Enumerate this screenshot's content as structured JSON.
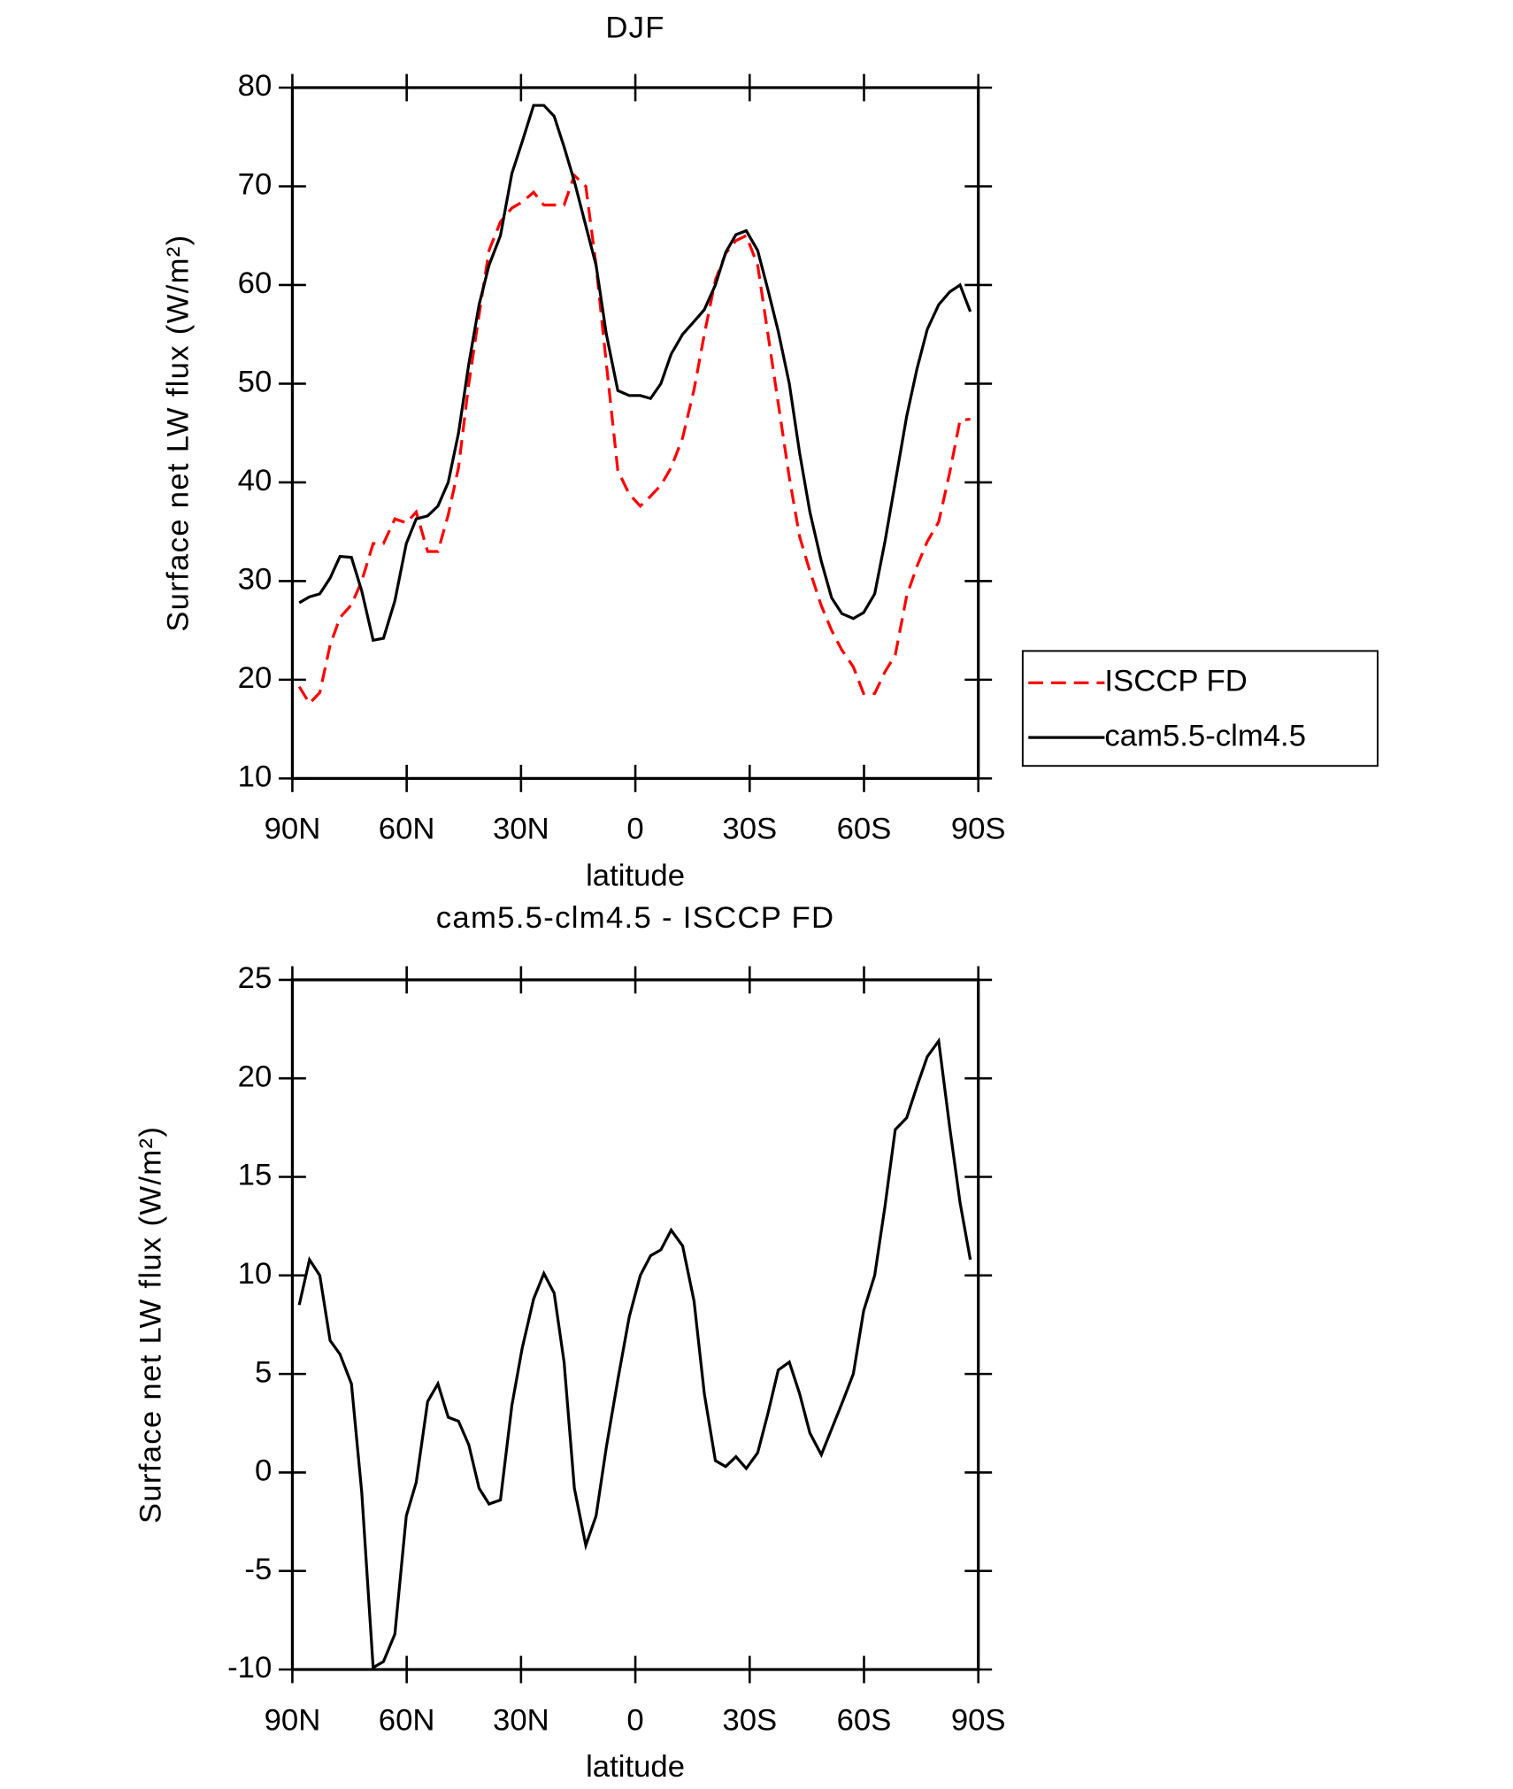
{
  "chart_data": [
    {
      "type": "line",
      "title": "DJF",
      "xlabel": "latitude",
      "ylabel": "Surface net LW flux (W/m²)",
      "x": [
        88.2,
        85.5,
        82.8,
        80.1,
        77.5,
        74.5,
        71.8,
        68.8,
        66.1,
        63.1,
        60.1,
        57.5,
        54.5,
        51.8,
        49.1,
        46.4,
        43.7,
        41,
        38.4,
        35.4,
        32.4,
        29.7,
        26.7,
        24,
        21.3,
        18.7,
        16,
        13,
        10.3,
        7.6,
        4.6,
        1.6,
        -1.3,
        -4,
        -6.7,
        -9.4,
        -12.4,
        -15.4,
        -18.1,
        -21,
        -23.7,
        -26.4,
        -29.1,
        -32.1,
        -34.8,
        -37.5,
        -40.4,
        -43.1,
        -45.8,
        -48.8,
        -51.5,
        -54.2,
        -57.2,
        -59.9,
        -62.8,
        -65.5,
        -68.2,
        -71.2,
        -73.9,
        -76.6,
        -79.6,
        -82.5,
        -85.2,
        -87.9
      ],
      "series": [
        {
          "name": "ISCCP FD",
          "color": "#ff0000",
          "style": "dashed",
          "values": [
            19.3,
            17.6,
            18.7,
            23.5,
            26.3,
            27.6,
            30,
            33.8,
            33.8,
            36.3,
            35.9,
            37,
            33,
            33,
            36.7,
            41.5,
            50,
            57,
            63.5,
            66.4,
            67.8,
            68.4,
            69.4,
            68.1,
            68.1,
            68.1,
            71.1,
            70,
            62,
            52,
            41.2,
            38.8,
            37.6,
            38.6,
            39.7,
            41.5,
            44.5,
            49.4,
            55,
            60.5,
            63.2,
            64.5,
            65,
            62,
            55,
            48,
            40.5,
            34.5,
            31,
            27.5,
            25,
            23,
            21.3,
            18.6,
            18.6,
            20.8,
            22.5,
            28.5,
            31.5,
            34,
            36,
            41,
            46.3,
            46.4
          ]
        },
        {
          "name": "cam5.5-clm4.5",
          "color": "#000000",
          "style": "solid",
          "values": [
            27.8,
            28.4,
            28.7,
            30.3,
            32.5,
            32.4,
            29,
            24,
            24.2,
            28,
            33.8,
            36.3,
            36.6,
            37.6,
            40,
            45,
            52,
            58,
            62,
            65,
            71.3,
            74.5,
            78.2,
            78.2,
            77.1,
            74,
            70.5,
            66,
            62,
            55,
            49.3,
            48.8,
            48.8,
            48.5,
            50,
            53,
            55,
            56.3,
            57.5,
            60,
            63.3,
            65.1,
            65.5,
            63.5,
            59.5,
            55.3,
            50,
            43,
            37,
            32,
            28.3,
            26.7,
            26.2,
            26.8,
            28.7,
            34,
            40,
            46.7,
            51.5,
            55.5,
            58,
            59.3,
            60,
            57.3
          ]
        }
      ],
      "xlim": [
        90,
        -90
      ],
      "xticks": [
        {
          "value": 90,
          "label": "90N"
        },
        {
          "value": 60,
          "label": "60N"
        },
        {
          "value": 30,
          "label": "30N"
        },
        0,
        {
          "value": -30,
          "label": "30S"
        },
        {
          "value": -60,
          "label": "60S"
        },
        {
          "value": -90,
          "label": "90S"
        }
      ],
      "ylim": [
        10,
        80
      ],
      "yticks": [
        10,
        20,
        30,
        40,
        50,
        60,
        70,
        80
      ],
      "legend": "right"
    },
    {
      "type": "line",
      "title": "cam5.5-clm4.5 - ISCCP FD",
      "xlabel": "latitude",
      "ylabel": "Surface net LW flux (W/m²)",
      "x": [
        88.2,
        85.5,
        82.8,
        80.1,
        77.5,
        74.5,
        71.8,
        68.8,
        66.1,
        63.1,
        60.1,
        57.5,
        54.5,
        51.8,
        49.1,
        46.4,
        43.7,
        41,
        38.4,
        35.4,
        32.4,
        29.7,
        26.7,
        24,
        21.3,
        18.7,
        16,
        13,
        10.3,
        7.6,
        4.6,
        1.6,
        -1.3,
        -4,
        -6.7,
        -9.4,
        -12.4,
        -15.4,
        -18.1,
        -21,
        -23.7,
        -26.4,
        -29.1,
        -32.1,
        -34.8,
        -37.5,
        -40.4,
        -43.1,
        -45.8,
        -48.8,
        -51.5,
        -54.2,
        -57.2,
        -59.9,
        -62.8,
        -65.5,
        -68.2,
        -71.2,
        -73.9,
        -76.6,
        -79.6,
        -82.5,
        -85.2,
        -87.9
      ],
      "series": [
        {
          "color": "#000000",
          "style": "solid",
          "values": [
            8.5,
            10.8,
            10,
            6.7,
            6,
            4.5,
            -1,
            -9.9,
            -9.6,
            -8.2,
            -2.2,
            -0.5,
            3.6,
            4.5,
            2.8,
            2.6,
            1.4,
            -0.8,
            -1.6,
            -1.4,
            3.4,
            6.3,
            8.8,
            10.1,
            9.1,
            5.6,
            -0.8,
            -3.7,
            -2.2,
            1.3,
            4.7,
            7.9,
            10,
            11,
            11.3,
            12.3,
            11.5,
            8.7,
            4,
            0.6,
            0.3,
            0.8,
            0.2,
            1,
            3,
            5.2,
            5.6,
            4,
            2,
            0.9,
            2.2,
            3.5,
            5,
            8.2,
            10,
            13.5,
            17.4,
            18,
            19.6,
            21.1,
            21.9,
            17.5,
            13.7,
            10.8
          ]
        }
      ],
      "xlim": [
        90,
        -90
      ],
      "xticks": [
        {
          "value": 90,
          "label": "90N"
        },
        {
          "value": 60,
          "label": "60N"
        },
        {
          "value": 30,
          "label": "30N"
        },
        0,
        {
          "value": -30,
          "label": "30S"
        },
        {
          "value": -60,
          "label": "60S"
        },
        {
          "value": -90,
          "label": "90S"
        }
      ],
      "ylim": [
        -10,
        25
      ],
      "yticks": [
        -10,
        -5,
        0,
        5,
        10,
        15,
        20,
        25
      ]
    }
  ]
}
